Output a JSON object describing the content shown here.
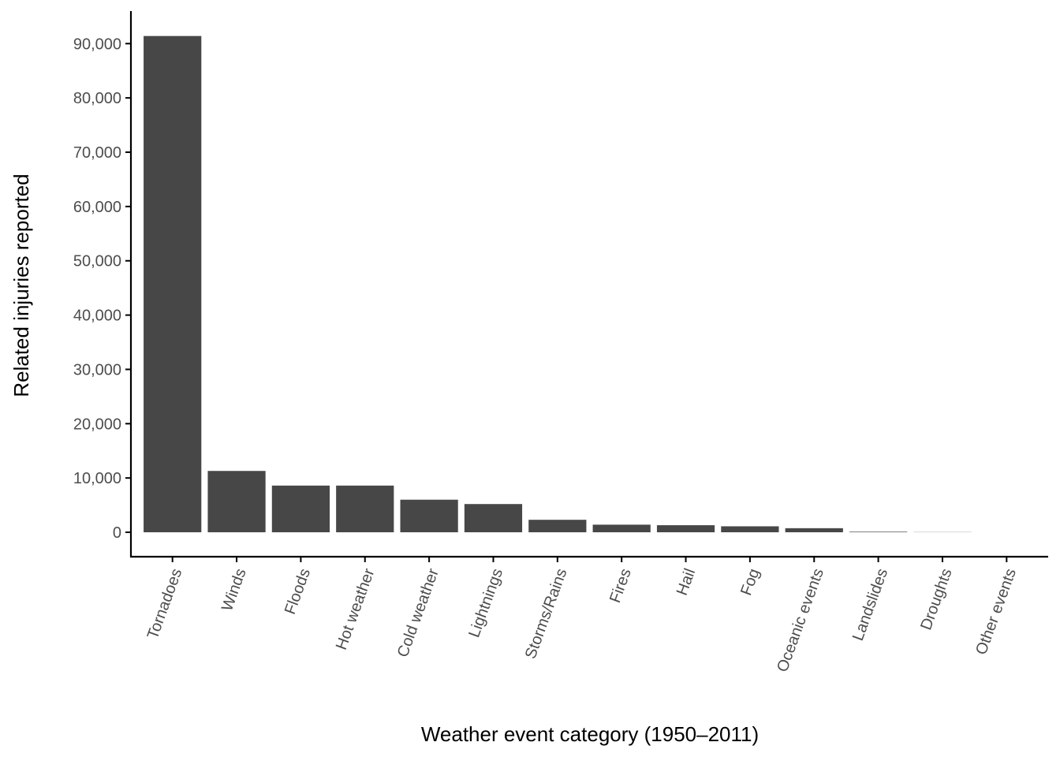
{
  "chart_data": {
    "type": "bar",
    "title": "",
    "xlabel": "Weather event category (1950–2011)",
    "ylabel": "Related injuries reported",
    "categories": [
      "Tornadoes",
      "Winds",
      "Floods",
      "Hot weather",
      "Cold weather",
      "Lightnings",
      "Storms/Rains",
      "Fires",
      "Hail",
      "Fog",
      "Oceanic events",
      "Landslides",
      "Droughts",
      "Other events"
    ],
    "values": [
      91400,
      11300,
      8600,
      8600,
      6000,
      5200,
      2300,
      1400,
      1300,
      1100,
      750,
      100,
      30,
      0
    ],
    "ylim": [
      -4500,
      96000
    ],
    "yticks": [
      0,
      10000,
      20000,
      30000,
      40000,
      50000,
      60000,
      70000,
      80000,
      90000
    ],
    "ytick_labels": [
      "0",
      "10,000",
      "20,000",
      "30,000",
      "40,000",
      "50,000",
      "60,000",
      "70,000",
      "80,000",
      "90,000"
    ],
    "bar_color": "#474747",
    "grid": false,
    "legend": "none"
  }
}
